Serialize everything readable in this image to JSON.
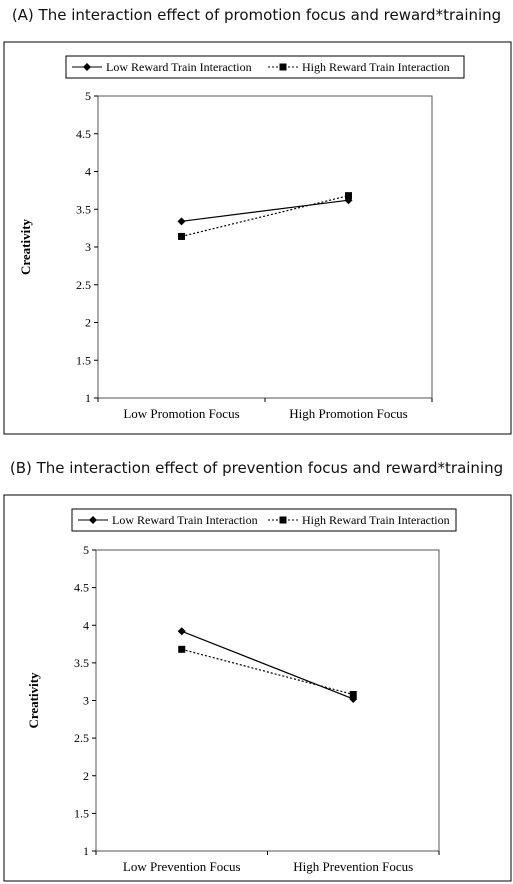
{
  "colors": {
    "low": "#000000",
    "high": "#000000",
    "frame": "#000000"
  },
  "chart_data": [
    {
      "type": "line",
      "title": "(A) The interaction effect of promotion focus and reward*training",
      "xlabel": "",
      "ylabel": "Creativity",
      "categories": [
        "Low Promotion Focus",
        "High Promotion Focus"
      ],
      "yticks": [
        "1",
        "1.5",
        "2",
        "2.5",
        "3",
        "3.5",
        "4",
        "4.5",
        "5"
      ],
      "ylim": [
        1,
        5
      ],
      "legend_position": "top",
      "grid": false,
      "series": [
        {
          "name": "Low Reward Train Interaction",
          "marker": "diamond",
          "line": "solid",
          "values": [
            3.34,
            3.62
          ]
        },
        {
          "name": "High Reward Train Interaction",
          "marker": "square",
          "line": "dotted",
          "values": [
            3.14,
            3.68
          ]
        }
      ]
    },
    {
      "type": "line",
      "title": "(B) The interaction effect of prevention focus and reward*training",
      "xlabel": "",
      "ylabel": "Creativity",
      "categories": [
        "Low Prevention Focus",
        "High Prevention Focus"
      ],
      "yticks": [
        "1",
        "1.5",
        "2",
        "2.5",
        "3",
        "3.5",
        "4",
        "4.5",
        "5"
      ],
      "ylim": [
        1,
        5
      ],
      "legend_position": "top",
      "grid": false,
      "series": [
        {
          "name": "Low Reward Train Interaction",
          "marker": "diamond",
          "line": "solid",
          "values": [
            3.92,
            3.02
          ]
        },
        {
          "name": "High Reward Train Interaction",
          "marker": "square",
          "line": "dotted",
          "values": [
            3.68,
            3.08
          ]
        }
      ]
    }
  ]
}
